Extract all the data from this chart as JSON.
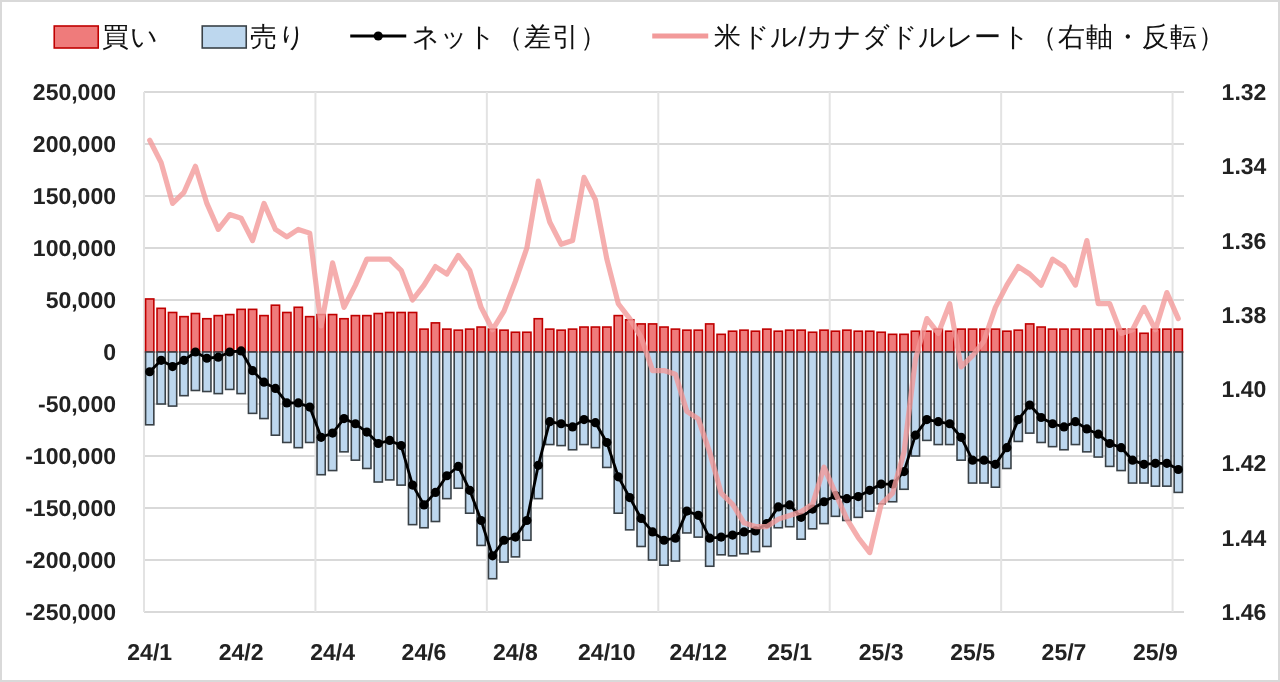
{
  "chart_data": {
    "type": "bar",
    "stacked": true,
    "grid": true,
    "legend": "top",
    "categories": [
      "24/1",
      null,
      null,
      null,
      null,
      null,
      null,
      null,
      "24/2",
      null,
      null,
      null,
      null,
      null,
      null,
      null,
      "24/4",
      null,
      null,
      null,
      null,
      null,
      null,
      null,
      "24/6",
      null,
      null,
      null,
      null,
      null,
      null,
      null,
      "24/8",
      null,
      null,
      null,
      null,
      null,
      null,
      null,
      "24/10",
      null,
      null,
      null,
      null,
      null,
      null,
      null,
      "24/12",
      null,
      null,
      null,
      null,
      null,
      null,
      null,
      "25/1",
      null,
      null,
      null,
      null,
      null,
      null,
      null,
      "25/3",
      null,
      null,
      null,
      null,
      null,
      null,
      null,
      "25/5",
      null,
      null,
      null,
      null,
      null,
      null,
      null,
      "25/7",
      null,
      null,
      null,
      null,
      null,
      null,
      null,
      "25/9",
      null,
      null
    ],
    "ylim": [
      -250000,
      250000
    ],
    "yticks": [
      {
        "value": -250000,
        "label": "-250,000"
      },
      {
        "value": -200000,
        "label": "-200,000"
      },
      {
        "value": -150000,
        "label": "-150,000"
      },
      {
        "value": -100000,
        "label": "-100,000"
      },
      {
        "value": -50000,
        "label": "-50,000"
      },
      0,
      {
        "value": 50000,
        "label": "50,000"
      },
      {
        "value": 100000,
        "label": "100,000"
      },
      {
        "value": 150000,
        "label": "150,000"
      },
      {
        "value": 200000,
        "label": "200,000"
      },
      {
        "value": 250000,
        "label": "250,000"
      }
    ],
    "y2lim": [
      1.46,
      1.32
    ],
    "y2ticks": [
      1.32,
      1.34,
      1.36,
      1.38,
      {
        "value": 1.4,
        "label": "1.40"
      },
      1.42,
      1.44,
      1.46
    ],
    "series": [
      {
        "name": "買い",
        "color": "#ef7b7b",
        "values": [
          51000,
          42000,
          38000,
          34000,
          37000,
          32000,
          35000,
          36000,
          41000,
          41000,
          35000,
          45000,
          38000,
          43000,
          34000,
          36000,
          36000,
          32000,
          35000,
          35000,
          37000,
          38000,
          38000,
          38000,
          22000,
          28000,
          22000,
          21000,
          22000,
          24000,
          22000,
          21000,
          19000,
          19000,
          32000,
          22000,
          21000,
          22000,
          24000,
          24000,
          24000,
          35000,
          31000,
          27000,
          27000,
          24000,
          22000,
          21000,
          21000,
          27000,
          17000,
          20000,
          21000,
          20000,
          22000,
          20000,
          21000,
          21000,
          19000,
          21000,
          20000,
          21000,
          20000,
          20000,
          19000,
          17000,
          17000,
          20000,
          20000,
          22000,
          20000,
          22000,
          22000,
          22000,
          22000,
          20000,
          21000,
          27000,
          24000,
          22000,
          22000,
          22000,
          22000,
          22000,
          22000,
          22000,
          22000,
          18000,
          22000,
          22000,
          22000
        ]
      },
      {
        "name": "売り",
        "color": "#bdd7ee",
        "values": [
          -70000,
          -50000,
          -52000,
          -42000,
          -37000,
          -38000,
          -40000,
          -36000,
          -40000,
          -59000,
          -64000,
          -80000,
          -87000,
          -92000,
          -87000,
          -118000,
          -114000,
          -96000,
          -104000,
          -112000,
          -125000,
          -123000,
          -128000,
          -166000,
          -169000,
          -163000,
          -141000,
          -131000,
          -155000,
          -186000,
          -218000,
          -202000,
          -197000,
          -181000,
          -141000,
          -89000,
          -90000,
          -94000,
          -89000,
          -92000,
          -111000,
          -155000,
          -171000,
          -187000,
          -200000,
          -205000,
          -201000,
          -174000,
          -178000,
          -206000,
          -195000,
          -196000,
          -194000,
          -192000,
          -187000,
          -169000,
          -168000,
          -180000,
          -170000,
          -165000,
          -158000,
          -162000,
          -159000,
          -153000,
          -146000,
          -144000,
          -132000,
          -100000,
          -85000,
          -89000,
          -89000,
          -104000,
          -126000,
          -126000,
          -130000,
          -112000,
          -86000,
          -78000,
          -87000,
          -91000,
          -94000,
          -89000,
          -96000,
          -101000,
          -110000,
          -114000,
          -126000,
          -126000,
          -129000,
          -129000,
          -135000
        ]
      },
      {
        "name": "ネット（差引）",
        "type": "line",
        "color": "#000000",
        "marker": "circle",
        "values": [
          -19000,
          -8000,
          -14000,
          -8000,
          0,
          -6000,
          -5000,
          0,
          1000,
          -18000,
          -29000,
          -35000,
          -49000,
          -49000,
          -53000,
          -82000,
          -78000,
          -64000,
          -69000,
          -77000,
          -88000,
          -85000,
          -90000,
          -128000,
          -147000,
          -135000,
          -119000,
          -110000,
          -133000,
          -162000,
          -196000,
          -181000,
          -178000,
          -162000,
          -109000,
          -67000,
          -69000,
          -72000,
          -65000,
          -68000,
          -87000,
          -120000,
          -140000,
          -160000,
          -173000,
          -181000,
          -179000,
          -153000,
          -157000,
          -179000,
          -178000,
          -176000,
          -173000,
          -172000,
          -165000,
          -149000,
          -147000,
          -159000,
          -151000,
          -144000,
          -138000,
          -141000,
          -139000,
          -133000,
          -127000,
          -127000,
          -115000,
          -80000,
          -65000,
          -67000,
          -69000,
          -82000,
          -104000,
          -104000,
          -108000,
          -92000,
          -65000,
          -51000,
          -63000,
          -69000,
          -72000,
          -67000,
          -74000,
          -79000,
          -88000,
          -92000,
          -104000,
          -108000,
          -107000,
          -107000,
          -113000
        ]
      },
      {
        "name": "米ドル/カナダドルレート（右軸・反転）",
        "type": "line",
        "axis": "y2",
        "color": "#f29a9a",
        "marker": "none",
        "values": [
          1.333,
          1.339,
          1.35,
          1.347,
          1.34,
          1.35,
          1.357,
          1.353,
          1.354,
          1.36,
          1.35,
          1.357,
          1.359,
          1.357,
          1.358,
          1.383,
          1.366,
          1.378,
          1.372,
          1.365,
          1.365,
          1.365,
          1.368,
          1.376,
          1.372,
          1.367,
          1.369,
          1.364,
          1.368,
          1.378,
          1.384,
          1.379,
          1.371,
          1.362,
          1.344,
          1.355,
          1.361,
          1.36,
          1.343,
          1.349,
          1.365,
          1.377,
          1.381,
          1.386,
          1.395,
          1.395,
          1.396,
          1.406,
          1.408,
          1.417,
          1.428,
          1.431,
          1.436,
          1.437,
          1.437,
          1.435,
          1.434,
          1.433,
          1.431,
          1.421,
          1.428,
          1.435,
          1.44,
          1.444,
          1.431,
          1.428,
          1.417,
          1.392,
          1.381,
          1.385,
          1.377,
          1.394,
          1.391,
          1.387,
          1.378,
          1.372,
          1.367,
          1.369,
          1.372,
          1.365,
          1.367,
          1.372,
          1.36,
          1.377,
          1.377,
          1.385,
          1.384,
          1.378,
          1.384,
          1.374,
          1.381
        ]
      }
    ]
  }
}
